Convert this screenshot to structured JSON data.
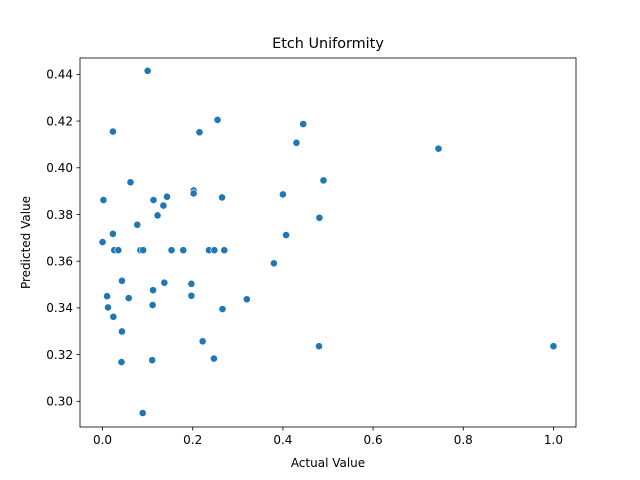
{
  "chart_data": {
    "type": "scatter",
    "title": "Etch Uniformity",
    "xlabel": "Actual Value",
    "ylabel": "Predicted Value",
    "xlim": [
      -0.05,
      1.05
    ],
    "ylim": [
      0.289,
      0.447
    ],
    "xticks": [
      0.0,
      0.2,
      0.4,
      0.6,
      0.8,
      1.0
    ],
    "xtick_labels": [
      "0.0",
      "0.2",
      "0.4",
      "0.6",
      "0.8",
      "1.0"
    ],
    "yticks": [
      0.3,
      0.32,
      0.34,
      0.36,
      0.38,
      0.4,
      0.42,
      0.44
    ],
    "ytick_labels": [
      "0.30",
      "0.32",
      "0.34",
      "0.36",
      "0.38",
      "0.40",
      "0.42",
      "0.44"
    ],
    "grid": false,
    "marker_color": "#1f77b4",
    "series": [
      {
        "x": [
          0.1,
          0.255,
          0.445,
          0.023,
          0.215,
          0.43,
          0.745,
          0.49,
          0.062,
          0.4,
          0.202,
          0.202,
          0.143,
          0.265,
          0.002,
          0.113,
          0.135,
          0.481,
          0.122,
          0.077,
          0.407,
          0.023,
          0.0,
          0.026,
          0.035,
          0.084,
          0.09,
          0.153,
          0.179,
          0.236,
          0.248,
          0.27,
          0.38,
          0.043,
          0.137,
          0.197,
          0.112,
          0.01,
          0.197,
          0.058,
          0.32,
          0.111,
          0.012,
          0.266,
          0.024,
          0.043,
          0.222,
          0.48,
          1.0,
          0.247,
          0.11,
          0.042,
          0.089
        ],
        "y": [
          0.4415,
          0.4205,
          0.4187,
          0.4155,
          0.4152,
          0.4107,
          0.4082,
          0.3946,
          0.3938,
          0.3886,
          0.3903,
          0.389,
          0.3876,
          0.3873,
          0.3862,
          0.3862,
          0.3838,
          0.3786,
          0.3796,
          0.3756,
          0.3712,
          0.3717,
          0.3682,
          0.3647,
          0.3647,
          0.3647,
          0.3647,
          0.3647,
          0.3647,
          0.3647,
          0.3647,
          0.3647,
          0.3591,
          0.3516,
          0.3508,
          0.3503,
          0.3476,
          0.345,
          0.3452,
          0.3442,
          0.3437,
          0.3412,
          0.3402,
          0.3395,
          0.3362,
          0.3299,
          0.3257,
          0.3236,
          0.3236,
          0.3183,
          0.3176,
          0.3168,
          0.295
        ]
      }
    ]
  }
}
